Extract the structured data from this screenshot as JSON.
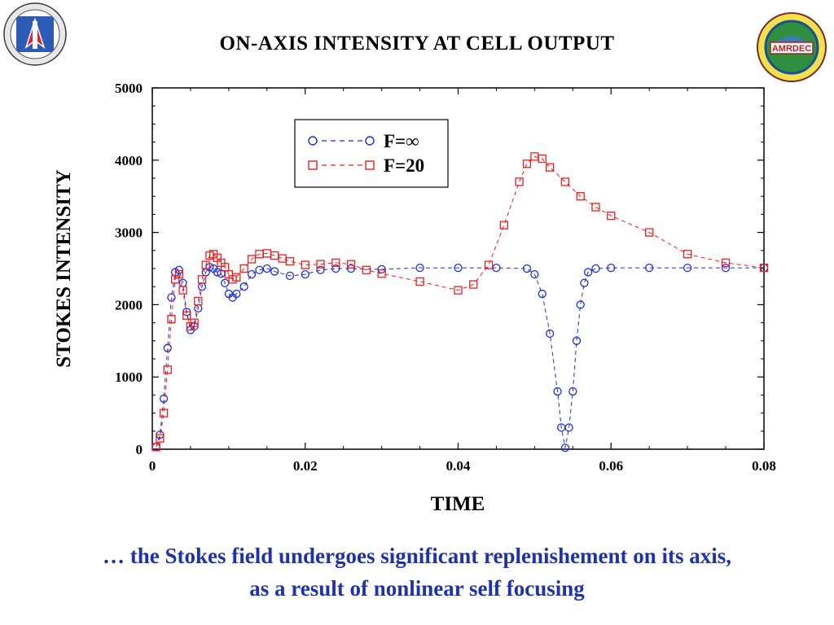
{
  "slide": {
    "title": "ON-AXIS INTENSITY AT CELL OUTPUT",
    "caption_line1": "… the Stokes field undergoes significant replenishement on its axis,",
    "caption_line2": "as a result of nonlinear self focusing",
    "caption_color": "#1f33a8"
  },
  "logos": {
    "left": {
      "icon": "army-tradition-of-excellence-seal",
      "text": "TRADITION OF EXCELLENCE"
    },
    "right": {
      "icon": "amrdec-seal",
      "text": "Aviation & Missile AMRDEC RD&E Center"
    }
  },
  "chart_data": {
    "type": "scatter",
    "title": "ON-AXIS INTENSITY AT CELL OUTPUT",
    "xlabel": "TIME",
    "ylabel": "STOKES INTENSITY",
    "xlim": [
      0,
      0.08
    ],
    "ylim": [
      0,
      5000
    ],
    "xticks": [
      0,
      0.02,
      0.04,
      0.06,
      0.08
    ],
    "xtick_labels": [
      "0",
      "0.02",
      "0.04",
      "0.06",
      "0.08"
    ],
    "yticks": [
      0,
      1000,
      2000,
      3000,
      4000,
      5000
    ],
    "ytick_labels": [
      "0",
      "1000",
      "2000",
      "3000",
      "4000",
      "5000"
    ],
    "grid": false,
    "legend_position": "top-center",
    "series": [
      {
        "name": "F=∞",
        "color": "#1a2fd6",
        "marker": "circle",
        "line": "dashed",
        "x": [
          0.0005,
          0.001,
          0.0015,
          0.002,
          0.0025,
          0.003,
          0.0035,
          0.004,
          0.0045,
          0.005,
          0.0055,
          0.006,
          0.0065,
          0.007,
          0.0075,
          0.008,
          0.0085,
          0.009,
          0.0095,
          0.01,
          0.0105,
          0.011,
          0.012,
          0.013,
          0.014,
          0.015,
          0.016,
          0.018,
          0.02,
          0.022,
          0.024,
          0.026,
          0.03,
          0.035,
          0.04,
          0.045,
          0.049,
          0.05,
          0.051,
          0.052,
          0.053,
          0.0535,
          0.054,
          0.0545,
          0.055,
          0.0555,
          0.056,
          0.0565,
          0.057,
          0.058,
          0.06,
          0.065,
          0.07,
          0.075,
          0.08
        ],
        "y": [
          30,
          200,
          700,
          1400,
          2100,
          2450,
          2480,
          2300,
          1900,
          1650,
          1700,
          1950,
          2250,
          2450,
          2520,
          2500,
          2450,
          2430,
          2300,
          2150,
          2100,
          2150,
          2250,
          2420,
          2480,
          2500,
          2460,
          2400,
          2420,
          2480,
          2500,
          2500,
          2490,
          2510,
          2510,
          2510,
          2500,
          2420,
          2150,
          1600,
          800,
          300,
          20,
          300,
          800,
          1500,
          2000,
          2300,
          2450,
          2500,
          2510,
          2510,
          2510,
          2510,
          2510
        ]
      },
      {
        "name": "F=20",
        "color": "#ee1c1c",
        "marker": "square",
        "line": "dashed",
        "x": [
          0.0005,
          0.001,
          0.0015,
          0.002,
          0.0025,
          0.003,
          0.0035,
          0.004,
          0.0045,
          0.005,
          0.0055,
          0.006,
          0.0065,
          0.007,
          0.0075,
          0.008,
          0.0085,
          0.009,
          0.0095,
          0.01,
          0.0105,
          0.011,
          0.012,
          0.013,
          0.014,
          0.015,
          0.016,
          0.017,
          0.018,
          0.02,
          0.022,
          0.024,
          0.026,
          0.028,
          0.03,
          0.035,
          0.04,
          0.042,
          0.044,
          0.046,
          0.048,
          0.049,
          0.05,
          0.051,
          0.052,
          0.054,
          0.056,
          0.058,
          0.06,
          0.065,
          0.07,
          0.075,
          0.08
        ],
        "y": [
          30,
          150,
          500,
          1100,
          1800,
          2350,
          2420,
          2200,
          1850,
          1700,
          1750,
          2050,
          2350,
          2550,
          2680,
          2700,
          2650,
          2580,
          2520,
          2420,
          2350,
          2380,
          2500,
          2630,
          2700,
          2710,
          2680,
          2640,
          2600,
          2550,
          2560,
          2580,
          2560,
          2480,
          2430,
          2320,
          2200,
          2280,
          2550,
          3100,
          3700,
          3950,
          4050,
          4020,
          3900,
          3700,
          3500,
          3350,
          3230,
          3000,
          2700,
          2580,
          2510
        ]
      }
    ]
  }
}
